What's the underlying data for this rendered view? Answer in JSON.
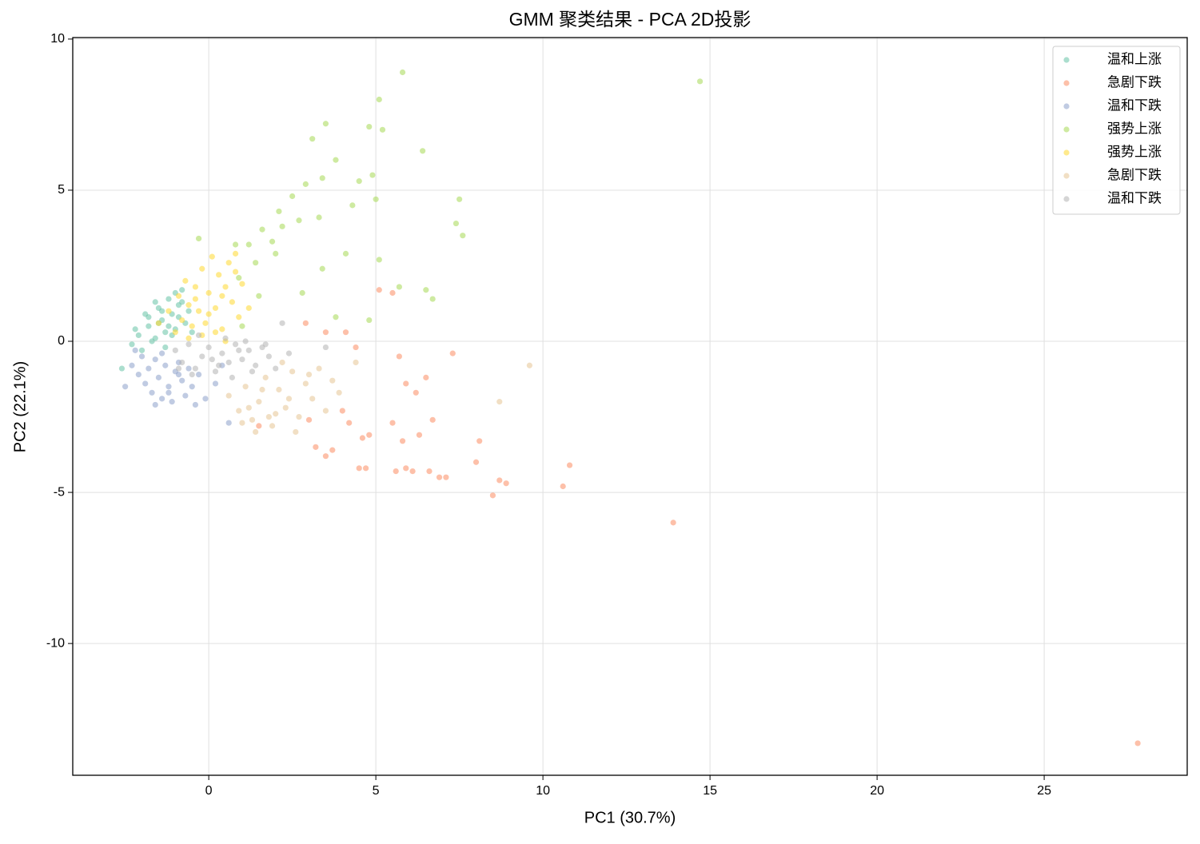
{
  "chart_data": {
    "type": "scatter",
    "title": "GMM 聚类结果 - PCA 2D投影",
    "x_label": "PC1 (30.7%)",
    "y_label": "PC2 (22.1%)",
    "xlim": [
      -4.07,
      29.28
    ],
    "ylim": [
      -14.36,
      10.05
    ],
    "xticks": [
      0,
      5,
      10,
      15,
      20,
      25
    ],
    "yticks": [
      -10,
      -5,
      0,
      5,
      10
    ],
    "grid": true,
    "legend": "upper right",
    "series": [
      {
        "name": "温和上涨",
        "color": "#66c2a5",
        "x": [
          -2.3,
          -2.1,
          -1.9,
          -1.8,
          -1.6,
          -1.5,
          -1.4,
          -1.3,
          -1.2,
          -1.1,
          -1.0,
          -0.9,
          -0.8,
          -0.7,
          -0.6,
          -2.0,
          -1.7,
          -1.5,
          -1.3,
          -1.1,
          -0.9,
          -2.2,
          -1.8,
          -1.6,
          -1.4,
          -1.2,
          -0.5,
          -2.6,
          -1.0,
          -0.8
        ],
        "values": [
          -0.1,
          0.2,
          0.9,
          0.5,
          0.1,
          1.1,
          0.7,
          0.3,
          1.4,
          0.9,
          0.4,
          1.2,
          1.7,
          0.6,
          1.0,
          -0.3,
          0.0,
          0.6,
          -0.2,
          0.2,
          0.8,
          0.4,
          0.8,
          1.3,
          1.0,
          0.5,
          0.3,
          -0.9,
          1.6,
          1.3
        ]
      },
      {
        "name": "急剧下跌",
        "color": "#fc8d62",
        "x": [
          5.1,
          5.5,
          5.7,
          7.3,
          4.4,
          4.1,
          3.5,
          6.5,
          5.9,
          6.2,
          8.1,
          8.0,
          8.7,
          8.9,
          8.5,
          10.6,
          10.8,
          13.9,
          27.8,
          6.9,
          7.1,
          6.6,
          5.6,
          5.9,
          6.1,
          4.7,
          4.5,
          3.5,
          3.7,
          4.8,
          4.2,
          5.5,
          5.8,
          6.7,
          6.3,
          3.0,
          3.2,
          1.5,
          2.9,
          4.0,
          4.6
        ],
        "values": [
          1.7,
          1.6,
          -0.5,
          -0.4,
          -0.2,
          0.3,
          0.3,
          -1.2,
          -1.4,
          -1.7,
          -3.3,
          -4.0,
          -4.6,
          -4.7,
          -5.1,
          -4.8,
          -4.1,
          -6.0,
          -13.3,
          -4.5,
          -4.5,
          -4.3,
          -4.3,
          -4.2,
          -4.3,
          -4.2,
          -4.2,
          -3.8,
          -3.6,
          -3.1,
          -2.7,
          -2.7,
          -3.3,
          -2.6,
          -3.1,
          -2.6,
          -3.5,
          -2.8,
          0.6,
          -2.3,
          -3.2
        ]
      },
      {
        "name": "温和下跌",
        "color": "#8da0cb",
        "x": [
          -2.5,
          -2.3,
          -2.1,
          -2.0,
          -1.9,
          -1.8,
          -1.7,
          -1.6,
          -1.5,
          -1.4,
          -1.3,
          -1.2,
          -1.1,
          -1.0,
          -0.9,
          -0.8,
          -0.7,
          -0.6,
          -0.5,
          -0.3,
          -0.1,
          0.2,
          0.4,
          -1.6,
          -1.2,
          -0.9,
          -2.2,
          -1.4,
          -0.4,
          0.6
        ],
        "values": [
          -1.5,
          -0.8,
          -1.1,
          -0.5,
          -1.4,
          -0.9,
          -1.7,
          -0.6,
          -1.2,
          -1.9,
          -0.8,
          -1.5,
          -2.0,
          -1.0,
          -0.7,
          -1.3,
          -1.8,
          -0.9,
          -1.5,
          -1.1,
          -1.9,
          -1.4,
          -0.8,
          -2.1,
          -1.7,
          -1.1,
          -0.3,
          -0.4,
          -2.1,
          -2.7
        ]
      },
      {
        "name": "强势上涨",
        "color": "#a6d854",
        "x": [
          5.8,
          14.7,
          5.1,
          4.8,
          5.2,
          3.5,
          3.1,
          6.4,
          3.8,
          7.5,
          7.4,
          7.6,
          4.9,
          5.0,
          4.5,
          4.3,
          3.4,
          2.9,
          2.5,
          2.1,
          1.6,
          1.2,
          0.8,
          1.4,
          2.0,
          3.4,
          4.1,
          5.1,
          6.5,
          6.7,
          5.7,
          -0.3,
          1.5,
          2.8,
          3.8,
          4.8,
          1.0,
          2.2,
          1.9,
          2.7,
          3.3,
          0.9
        ],
        "values": [
          8.9,
          8.6,
          8.0,
          7.1,
          7.0,
          7.2,
          6.7,
          6.3,
          6.0,
          4.7,
          3.9,
          3.5,
          5.5,
          4.7,
          5.3,
          4.5,
          5.4,
          5.2,
          4.8,
          4.3,
          3.7,
          3.2,
          3.2,
          2.6,
          2.9,
          2.4,
          2.9,
          2.7,
          1.7,
          1.4,
          1.8,
          3.4,
          1.5,
          1.6,
          0.8,
          0.7,
          0.5,
          3.8,
          3.3,
          4.0,
          4.1,
          2.1
        ]
      },
      {
        "name": "强势上涨",
        "color": "#ffd92f",
        "x": [
          -1.2,
          -1.0,
          -0.9,
          -0.8,
          -0.7,
          -0.6,
          -0.5,
          -0.4,
          -0.3,
          -0.2,
          -0.1,
          0.0,
          0.1,
          0.2,
          0.3,
          0.4,
          0.5,
          0.6,
          0.7,
          0.8,
          0.9,
          1.0,
          -0.6,
          -0.2,
          0.2,
          0.5,
          -0.4,
          0.0,
          0.4,
          0.8,
          -1.5,
          1.2
        ],
        "values": [
          1.0,
          0.3,
          1.5,
          0.7,
          2.0,
          1.2,
          0.5,
          1.8,
          1.0,
          2.4,
          0.6,
          1.6,
          2.8,
          1.1,
          2.2,
          0.4,
          1.8,
          2.6,
          1.3,
          2.9,
          0.8,
          1.9,
          0.1,
          0.2,
          0.3,
          0.0,
          1.4,
          0.9,
          1.5,
          2.3,
          0.6,
          1.1
        ]
      },
      {
        "name": "急剧下跌",
        "color": "#e5c494",
        "x": [
          9.6,
          8.7,
          4.4,
          0.6,
          0.9,
          1.1,
          1.3,
          1.5,
          1.7,
          1.9,
          2.1,
          2.3,
          2.5,
          2.7,
          2.9,
          3.1,
          3.3,
          3.5,
          3.7,
          3.9,
          1.4,
          1.8,
          2.2,
          2.6,
          3.0,
          1.0,
          1.6,
          2.4,
          1.2,
          2.0
        ],
        "values": [
          -0.8,
          -2.0,
          -0.7,
          -1.8,
          -2.3,
          -1.5,
          -2.6,
          -2.0,
          -1.2,
          -2.8,
          -1.6,
          -2.2,
          -1.0,
          -2.5,
          -1.4,
          -1.9,
          -0.9,
          -2.3,
          -1.3,
          -1.7,
          -3.0,
          -2.5,
          -0.7,
          -3.0,
          -1.1,
          -2.7,
          -1.6,
          -1.9,
          -2.2,
          -2.4
        ]
      },
      {
        "name": "温和下跌",
        "color": "#b3b3b3",
        "x": [
          -1.0,
          -0.8,
          -0.6,
          -0.4,
          -0.2,
          0.0,
          0.2,
          0.4,
          0.6,
          0.8,
          1.0,
          1.2,
          1.4,
          1.6,
          1.8,
          2.0,
          2.2,
          3.5,
          -0.5,
          0.1,
          0.7,
          1.3,
          -0.3,
          0.5,
          0.9,
          1.7,
          2.4,
          -0.9,
          0.3,
          1.1
        ],
        "values": [
          -0.3,
          -0.7,
          -0.1,
          -0.9,
          -0.5,
          -0.2,
          -1.0,
          -0.4,
          -0.7,
          -0.1,
          -0.6,
          -0.3,
          -0.8,
          -0.2,
          -0.5,
          -0.9,
          0.6,
          -0.2,
          -1.1,
          -0.6,
          -1.2,
          -1.0,
          0.2,
          0.1,
          -0.3,
          -0.1,
          -0.4,
          -0.9,
          -0.8,
          0.0
        ]
      }
    ]
  }
}
